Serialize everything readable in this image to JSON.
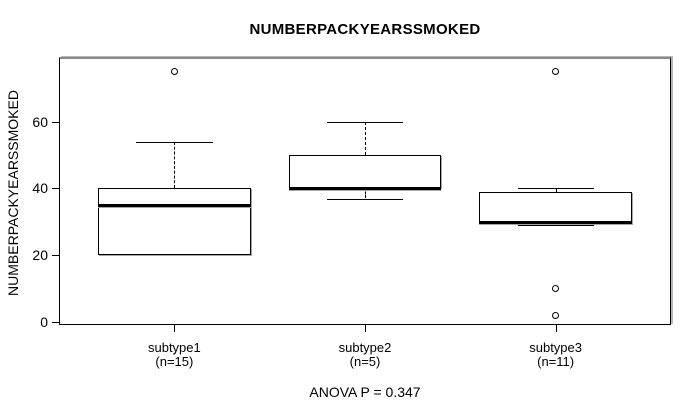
{
  "colors": {
    "background": "#ffffff",
    "line": "#000000",
    "frame_shadow": "#8a8a8a"
  },
  "chart_data": {
    "type": "boxplot",
    "title": "NUMBERPACKYEARSSMOKED",
    "ylabel": "NUMBERPACKYEARSSMOKED",
    "yticks": [
      0,
      20,
      40,
      60
    ],
    "ylim": [
      -0.6,
      78.8
    ],
    "grid": false,
    "annotation": "ANOVA P = 0.347",
    "groups": [
      {
        "label": "subtype1",
        "n_label": "(n=15)",
        "whisker_low": 20,
        "q1": 20,
        "median": 35,
        "q3": 40,
        "whisker_high": 54,
        "outliers": [
          75
        ]
      },
      {
        "label": "subtype2",
        "n_label": "(n=5)",
        "whisker_low": 37,
        "q1": 40,
        "median": 40,
        "q3": 50,
        "whisker_high": 60,
        "outliers": []
      },
      {
        "label": "subtype3",
        "n_label": "(n=11)",
        "whisker_low": 29,
        "q1": 29.5,
        "median": 30,
        "q3": 39,
        "whisker_high": 40,
        "outliers": [
          75,
          10,
          2
        ]
      }
    ]
  }
}
